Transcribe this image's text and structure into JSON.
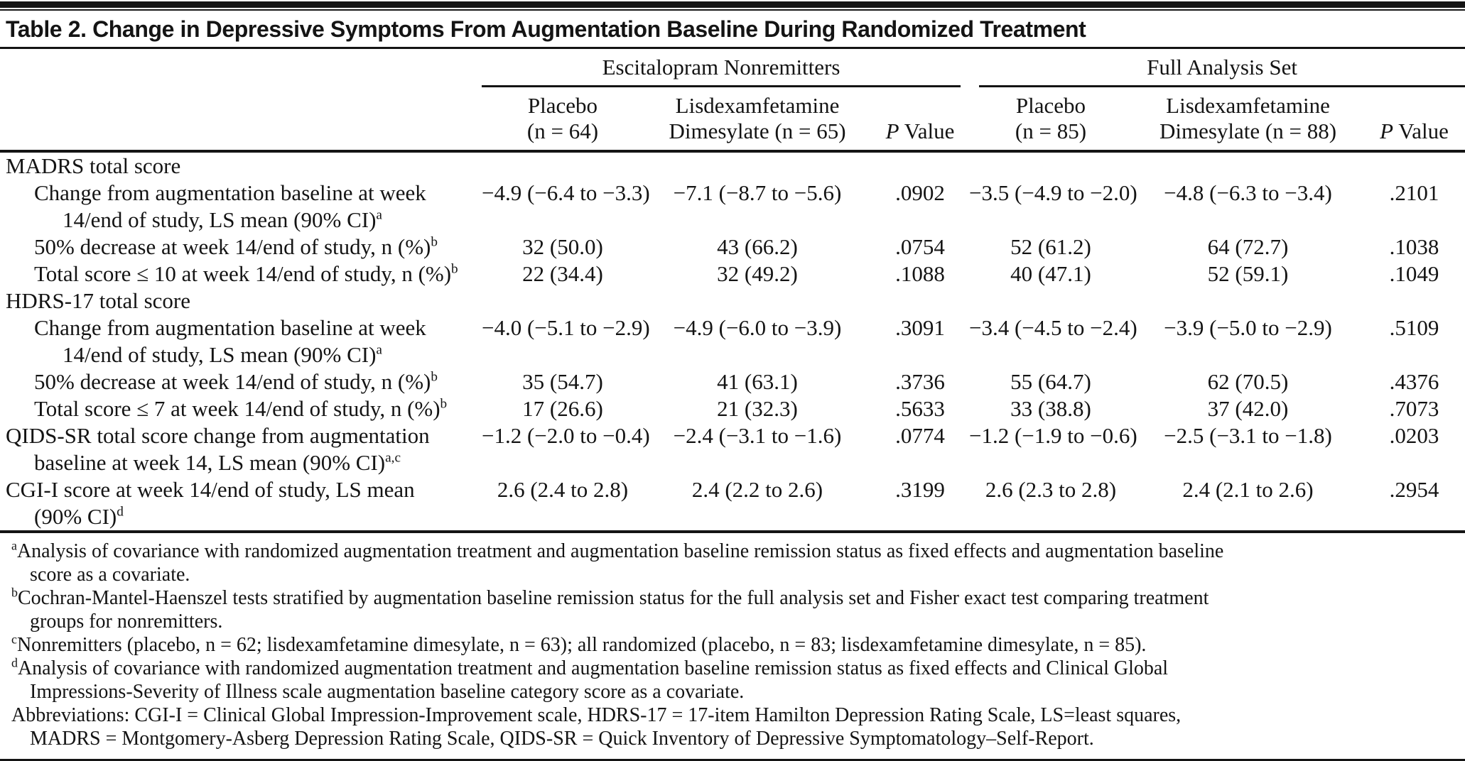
{
  "title": "Table 2. Change in Depressive Symptoms From Augmentation Baseline During Randomized Treatment",
  "table": {
    "groups": [
      {
        "label": "Escitalopram Nonremitters",
        "placebo_line1": "Placebo",
        "placebo_line2": "(n = 64)",
        "drug_line1": "Lisdexamfetamine",
        "drug_line2": "Dimesylate (n = 65)",
        "p_italic": "P",
        "p_rest": "Value"
      },
      {
        "label": "Full Analysis Set",
        "placebo_line1": "Placebo",
        "placebo_line2": "(n = 85)",
        "drug_line1": "Lisdexamfetamine",
        "drug_line2": "Dimesylate (n = 88)",
        "p_italic": "P",
        "p_rest": "Value"
      }
    ],
    "rows": [
      {
        "type": "section",
        "label": "MADRS total score",
        "sup": "",
        "cells": [
          "",
          "",
          "",
          "",
          "",
          ""
        ]
      },
      {
        "type": "sub",
        "label": "Change from augmentation baseline at week\n14/end of study, LS mean (90% CI)",
        "sup": "a",
        "cells": [
          "−4.9 (−6.4 to −3.3)",
          "−7.1 (−8.7 to −5.6)",
          ".0902",
          "−3.5 (−4.9 to −2.0)",
          "−4.8 (−6.3 to −3.4)",
          ".2101"
        ]
      },
      {
        "type": "sub",
        "label": "50% decrease at week 14/end of study, n (%)",
        "sup": "b",
        "cells": [
          "32 (50.0)",
          "43 (66.2)",
          ".0754",
          "52 (61.2)",
          "64 (72.7)",
          ".1038"
        ]
      },
      {
        "type": "sub",
        "label": "Total score ≤ 10 at week 14/end of study, n (%)",
        "sup": "b",
        "cells": [
          "22 (34.4)",
          "32 (49.2)",
          ".1088",
          "40 (47.1)",
          "52 (59.1)",
          ".1049"
        ]
      },
      {
        "type": "section",
        "label": "HDRS-17 total score",
        "sup": "",
        "cells": [
          "",
          "",
          "",
          "",
          "",
          ""
        ]
      },
      {
        "type": "sub",
        "label": "Change from augmentation baseline at week\n14/end of study, LS mean (90% CI)",
        "sup": "a",
        "cells": [
          "−4.0 (−5.1 to −2.9)",
          "−4.9 (−6.0 to −3.9)",
          ".3091",
          "−3.4 (−4.5 to −2.4)",
          "−3.9 (−5.0 to −2.9)",
          ".5109"
        ]
      },
      {
        "type": "sub",
        "label": "50% decrease at week 14/end of study, n (%)",
        "sup": "b",
        "cells": [
          "35 (54.7)",
          "41 (63.1)",
          ".3736",
          "55 (64.7)",
          "62 (70.5)",
          ".4376"
        ]
      },
      {
        "type": "sub",
        "label": "Total score ≤ 7 at week 14/end of study, n (%)",
        "sup": "b",
        "cells": [
          "17 (26.6)",
          "21 (32.3)",
          ".5633",
          "33 (38.8)",
          "37 (42.0)",
          ".7073"
        ]
      },
      {
        "type": "top",
        "label": "QIDS-SR total score change from augmentation\nbaseline at week 14, LS mean (90% CI)",
        "sup": "a,c",
        "cells": [
          "−1.2 (−2.0 to −0.4)",
          "−2.4 (−3.1 to −1.6)",
          ".0774",
          "−1.2 (−1.9 to −0.6)",
          "−2.5 (−3.1 to −1.8)",
          ".0203"
        ]
      },
      {
        "type": "top",
        "label": "CGI-I score at week 14/end of study, LS mean\n(90% CI)",
        "sup": "d",
        "cells": [
          "2.6 (2.4 to 2.8)",
          "2.4 (2.2 to 2.6)",
          ".3199",
          "2.6 (2.3 to 2.8)",
          "2.4 (2.1 to 2.6)",
          ".2954"
        ]
      }
    ]
  },
  "footnotes": [
    {
      "sup": "a",
      "text": "Analysis of covariance with randomized augmentation treatment and augmentation baseline remission status as fixed effects and augmentation baseline\nscore as a covariate."
    },
    {
      "sup": "b",
      "text": "Cochran-Mantel-Haenszel tests stratified by augmentation baseline remission status for the full analysis set and Fisher exact test comparing treatment\ngroups for nonremitters."
    },
    {
      "sup": "c",
      "text": "Nonremitters (placebo, n = 62; lisdexamfetamine dimesylate, n = 63); all randomized (placebo, n = 83; lisdexamfetamine dimesylate, n = 85)."
    },
    {
      "sup": "d",
      "text": "Analysis of covariance with randomized augmentation treatment and augmentation baseline remission status as fixed effects and Clinical Global\nImpressions-Severity of Illness scale augmentation baseline category score as a covariate."
    },
    {
      "sup": "",
      "text": "Abbreviations: CGI-I = Clinical Global Impression-Improvement scale, HDRS-17 = 17-item Hamilton Depression Rating Scale, LS=least squares,\nMADRS = Montgomery-Asberg Depression Rating Scale, QIDS-SR = Quick Inventory of Depressive Symptomatology–Self-Report."
    }
  ]
}
